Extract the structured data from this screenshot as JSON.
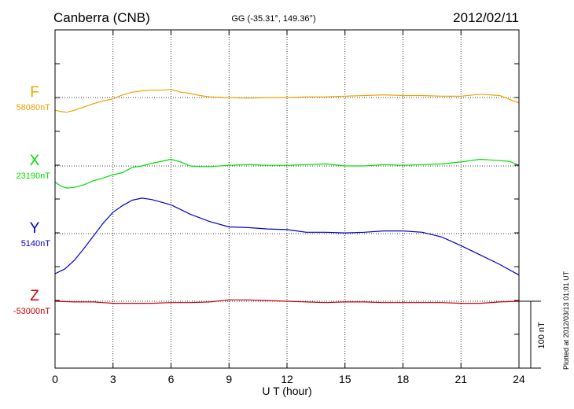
{
  "header": {
    "station": "Canberra (CNB)",
    "coords": "GG (-35.31°, 149.36°)",
    "date": "2012/02/11"
  },
  "footer": {
    "plotted": "Plotted at 2012/03/13 01:01  UT"
  },
  "scale_bar": {
    "label": "100 nT",
    "value_nT": 100
  },
  "chart_data": {
    "type": "line",
    "title": "Canberra (CNB)",
    "xlabel": "U T (hour)",
    "ylabel": "",
    "xlim": [
      0,
      24
    ],
    "x_ticks": [
      "0",
      "3",
      "6",
      "9",
      "12",
      "15",
      "18",
      "21",
      "24"
    ],
    "grid": true,
    "series": [
      {
        "name": "F",
        "baseline_label": "58080nT",
        "baseline_nT": 58080,
        "color": "#f0a000",
        "x": [
          0,
          0.3,
          0.6,
          1,
          1.5,
          2,
          2.5,
          3,
          3.5,
          4,
          4.5,
          5,
          5.5,
          6,
          6.5,
          7,
          7.5,
          8,
          9,
          10,
          11,
          12,
          13,
          14,
          15,
          16,
          17,
          18,
          19,
          20,
          21,
          22,
          23,
          24
        ],
        "y": [
          58061,
          58059,
          58058,
          58061,
          58066,
          58071,
          58075,
          58078,
          58084,
          58088,
          58090,
          58091,
          58091,
          58092,
          58088,
          58086,
          58083,
          58081,
          58080,
          58079,
          58080,
          58080,
          58081,
          58081,
          58082,
          58083,
          58084,
          58083,
          58083,
          58082,
          58082,
          58085,
          58083,
          58072
        ]
      },
      {
        "name": "X",
        "baseline_label": "23190nT",
        "baseline_nT": 23190,
        "color": "#00dd00",
        "x": [
          0,
          0.3,
          0.6,
          1,
          1.5,
          2,
          2.5,
          3,
          3.5,
          4,
          4.5,
          5,
          5.5,
          6,
          6.5,
          7,
          7.5,
          8,
          9,
          10,
          11,
          12,
          13,
          14,
          15,
          16,
          17,
          18,
          19,
          20,
          21,
          21.5,
          22,
          22.5,
          23,
          23.5,
          24
        ],
        "y": [
          23166,
          23160,
          23157,
          23158,
          23162,
          23168,
          23172,
          23177,
          23180,
          23188,
          23190,
          23194,
          23197,
          23200,
          23196,
          23190,
          23189,
          23189,
          23191,
          23192,
          23191,
          23191,
          23192,
          23193,
          23190,
          23190,
          23192,
          23191,
          23192,
          23193,
          23196,
          23198,
          23200,
          23199,
          23198,
          23197,
          23191
        ]
      },
      {
        "name": "Y",
        "baseline_label": "5140nT",
        "baseline_nT": 5140,
        "color": "#0000cc",
        "x": [
          0,
          0.5,
          1,
          1.5,
          2,
          2.5,
          3,
          3.5,
          4,
          4.5,
          5,
          5.5,
          6,
          6.5,
          7,
          8,
          9,
          10,
          11,
          12,
          13,
          14,
          15,
          16,
          17,
          18,
          19,
          20,
          21,
          22,
          23,
          24
        ],
        "y": [
          5080,
          5087,
          5100,
          5118,
          5137,
          5156,
          5172,
          5182,
          5190,
          5193,
          5191,
          5187,
          5183,
          5176,
          5169,
          5158,
          5150,
          5149,
          5147,
          5146,
          5142,
          5142,
          5141,
          5142,
          5144,
          5144,
          5142,
          5135,
          5122,
          5108,
          5094,
          5078
        ]
      },
      {
        "name": "Z",
        "baseline_label": "-53000nT",
        "baseline_nT": -53000,
        "color": "#cc0000",
        "x": [
          0,
          1,
          2,
          3,
          4,
          5,
          6,
          7,
          8,
          9,
          10,
          11,
          12,
          13,
          14,
          15,
          16,
          17,
          18,
          19,
          20,
          21,
          22,
          23,
          24
        ],
        "y": [
          -53000,
          -53001,
          -53001,
          -53003,
          -53003,
          -53003,
          -53002,
          -53002,
          -53001,
          -52998,
          -52998,
          -52999,
          -53000,
          -53001,
          -53002,
          -53001,
          -53001,
          -53002,
          -53002,
          -53002,
          -53002,
          -53003,
          -53003,
          -53001,
          -53000
        ]
      }
    ]
  }
}
